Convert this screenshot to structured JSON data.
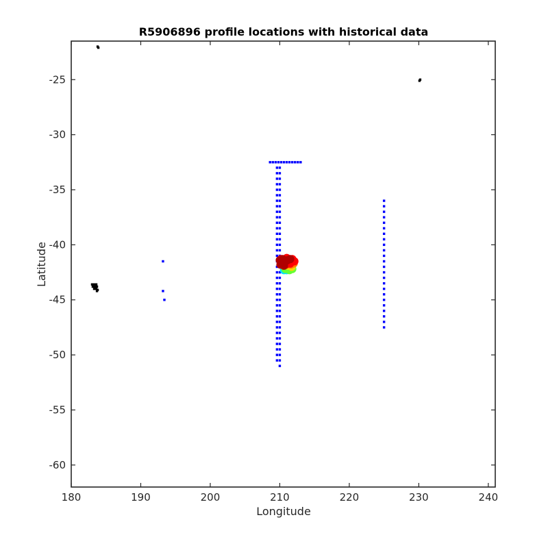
{
  "chart_data": {
    "type": "scatter",
    "title": "R5906896 profile locations with historical data",
    "xlabel": "Longitude",
    "ylabel": "Latitude",
    "xlim": [
      180,
      241
    ],
    "ylim": [
      -62,
      -21.5
    ],
    "xticks": [
      180,
      190,
      200,
      210,
      220,
      230,
      240
    ],
    "yticks": [
      -25,
      -30,
      -35,
      -40,
      -45,
      -50,
      -55,
      -60
    ],
    "grid": false,
    "box": true,
    "series": [
      {
        "color": "#000000",
        "points": [
          [
            183.8,
            -22.0
          ],
          [
            183.9,
            -22.1
          ],
          [
            230.2,
            -25.0
          ],
          [
            230.1,
            -25.1
          ],
          [
            183.0,
            -43.6
          ],
          [
            183.3,
            -43.6
          ],
          [
            183.6,
            -43.6
          ],
          [
            183.1,
            -43.8
          ],
          [
            183.4,
            -43.8
          ],
          [
            183.7,
            -43.8
          ],
          [
            183.3,
            -44.0
          ],
          [
            183.6,
            -44.0
          ],
          [
            183.8,
            -44.1
          ],
          [
            183.7,
            -44.2
          ]
        ]
      },
      {
        "color": "#0000ff",
        "points": [
          [
            208.6,
            -32.5
          ],
          [
            209.0,
            -32.5
          ],
          [
            209.4,
            -32.5
          ],
          [
            209.8,
            -32.5
          ],
          [
            210.2,
            -32.5
          ],
          [
            210.6,
            -32.5
          ],
          [
            211.0,
            -32.5
          ],
          [
            211.4,
            -32.5
          ],
          [
            211.8,
            -32.5
          ],
          [
            212.2,
            -32.5
          ],
          [
            212.6,
            -32.5
          ],
          [
            213.0,
            -32.5
          ],
          [
            193.2,
            -41.5
          ],
          [
            193.2,
            -44.2
          ],
          [
            193.4,
            -45.0
          ],
          [
            225.0,
            -36.0
          ],
          [
            225.0,
            -36.5
          ],
          [
            225.0,
            -37.0
          ],
          [
            225.0,
            -37.5
          ],
          [
            225.0,
            -38.0
          ],
          [
            225.0,
            -38.5
          ],
          [
            225.0,
            -39.0
          ],
          [
            225.0,
            -39.5
          ],
          [
            225.0,
            -40.0
          ],
          [
            225.0,
            -40.5
          ],
          [
            225.0,
            -41.0
          ],
          [
            225.0,
            -41.5
          ],
          [
            225.0,
            -42.0
          ],
          [
            225.0,
            -42.5
          ],
          [
            225.0,
            -43.0
          ],
          [
            225.0,
            -43.5
          ],
          [
            225.0,
            -44.0
          ],
          [
            225.0,
            -44.5
          ],
          [
            225.0,
            -45.0
          ],
          [
            225.0,
            -45.5
          ],
          [
            225.0,
            -46.0
          ],
          [
            225.0,
            -46.5
          ],
          [
            225.0,
            -47.0
          ],
          [
            225.0,
            -47.5
          ],
          [
            209.6,
            -33.0
          ],
          [
            209.6,
            -33.5
          ],
          [
            209.6,
            -34.0
          ],
          [
            209.6,
            -34.5
          ],
          [
            209.6,
            -35.0
          ],
          [
            209.6,
            -35.5
          ],
          [
            209.6,
            -36.0
          ],
          [
            209.6,
            -36.5
          ],
          [
            209.6,
            -37.0
          ],
          [
            209.6,
            -37.5
          ],
          [
            209.6,
            -38.0
          ],
          [
            209.6,
            -38.5
          ],
          [
            209.6,
            -39.0
          ],
          [
            209.6,
            -39.5
          ],
          [
            209.6,
            -40.0
          ],
          [
            209.6,
            -40.5
          ],
          [
            209.6,
            -41.0
          ],
          [
            209.6,
            -41.5
          ],
          [
            209.6,
            -42.0
          ],
          [
            209.6,
            -42.5
          ],
          [
            209.6,
            -43.0
          ],
          [
            209.6,
            -43.5
          ],
          [
            209.6,
            -44.0
          ],
          [
            209.6,
            -44.5
          ],
          [
            209.6,
            -45.0
          ],
          [
            209.6,
            -45.5
          ],
          [
            209.6,
            -46.0
          ],
          [
            209.6,
            -46.5
          ],
          [
            209.6,
            -47.0
          ],
          [
            209.6,
            -47.5
          ],
          [
            209.6,
            -48.0
          ],
          [
            209.6,
            -48.5
          ],
          [
            209.6,
            -49.0
          ],
          [
            209.6,
            -49.5
          ],
          [
            209.6,
            -50.0
          ],
          [
            209.6,
            -50.5
          ],
          [
            210.0,
            -33.0
          ],
          [
            210.0,
            -33.5
          ],
          [
            210.0,
            -34.0
          ],
          [
            210.0,
            -34.5
          ],
          [
            210.0,
            -35.0
          ],
          [
            210.0,
            -35.5
          ],
          [
            210.0,
            -36.0
          ],
          [
            210.0,
            -36.5
          ],
          [
            210.0,
            -37.0
          ],
          [
            210.0,
            -37.5
          ],
          [
            210.0,
            -38.0
          ],
          [
            210.0,
            -38.5
          ],
          [
            210.0,
            -39.0
          ],
          [
            210.0,
            -39.5
          ],
          [
            210.0,
            -40.0
          ],
          [
            210.0,
            -40.5
          ],
          [
            210.0,
            -41.0
          ],
          [
            210.0,
            -41.5
          ],
          [
            210.0,
            -42.0
          ],
          [
            210.0,
            -42.5
          ],
          [
            210.0,
            -43.0
          ],
          [
            210.0,
            -43.5
          ],
          [
            210.0,
            -44.0
          ],
          [
            210.0,
            -44.5
          ],
          [
            210.0,
            -45.0
          ],
          [
            210.0,
            -45.5
          ],
          [
            210.0,
            -46.0
          ],
          [
            210.0,
            -46.5
          ],
          [
            210.0,
            -47.0
          ],
          [
            210.0,
            -47.5
          ],
          [
            210.0,
            -48.0
          ],
          [
            210.0,
            -48.5
          ],
          [
            210.0,
            -49.0
          ],
          [
            210.0,
            -49.5
          ],
          [
            210.0,
            -50.0
          ],
          [
            210.0,
            -50.5
          ],
          [
            210.0,
            -51.0
          ]
        ]
      },
      {
        "color": "#00e0ff",
        "points": [
          [
            210.6,
            -42.3
          ],
          [
            211.0,
            -42.3
          ]
        ]
      },
      {
        "color": "#66ff33",
        "points": [
          [
            210.8,
            -42.2
          ],
          [
            211.4,
            -42.3
          ],
          [
            211.8,
            -42.2
          ]
        ]
      },
      {
        "color": "#ffd400",
        "points": [
          [
            211.2,
            -41.9
          ],
          [
            211.7,
            -42.0
          ],
          [
            211.9,
            -41.6
          ]
        ]
      },
      {
        "color": "#ff8000",
        "points": [
          [
            210.5,
            -41.8
          ],
          [
            211.1,
            -41.5
          ],
          [
            211.6,
            -41.8
          ],
          [
            212.0,
            -41.7
          ]
        ]
      },
      {
        "color": "#ff0000",
        "points": [
          [
            210.2,
            -41.3
          ],
          [
            210.6,
            -41.5
          ],
          [
            211.0,
            -41.2
          ],
          [
            211.4,
            -41.5
          ],
          [
            211.8,
            -41.3
          ],
          [
            212.1,
            -41.5
          ],
          [
            210.3,
            -41.7
          ],
          [
            210.9,
            -41.8
          ],
          [
            211.5,
            -41.7
          ]
        ]
      },
      {
        "color": "#b00000",
        "points": [
          [
            210.0,
            -41.4
          ],
          [
            210.4,
            -41.3
          ],
          [
            210.7,
            -41.6
          ],
          [
            211.1,
            -41.4
          ],
          [
            211.5,
            -41.3
          ],
          [
            210.1,
            -41.8
          ],
          [
            210.6,
            -41.9
          ]
        ]
      }
    ]
  }
}
